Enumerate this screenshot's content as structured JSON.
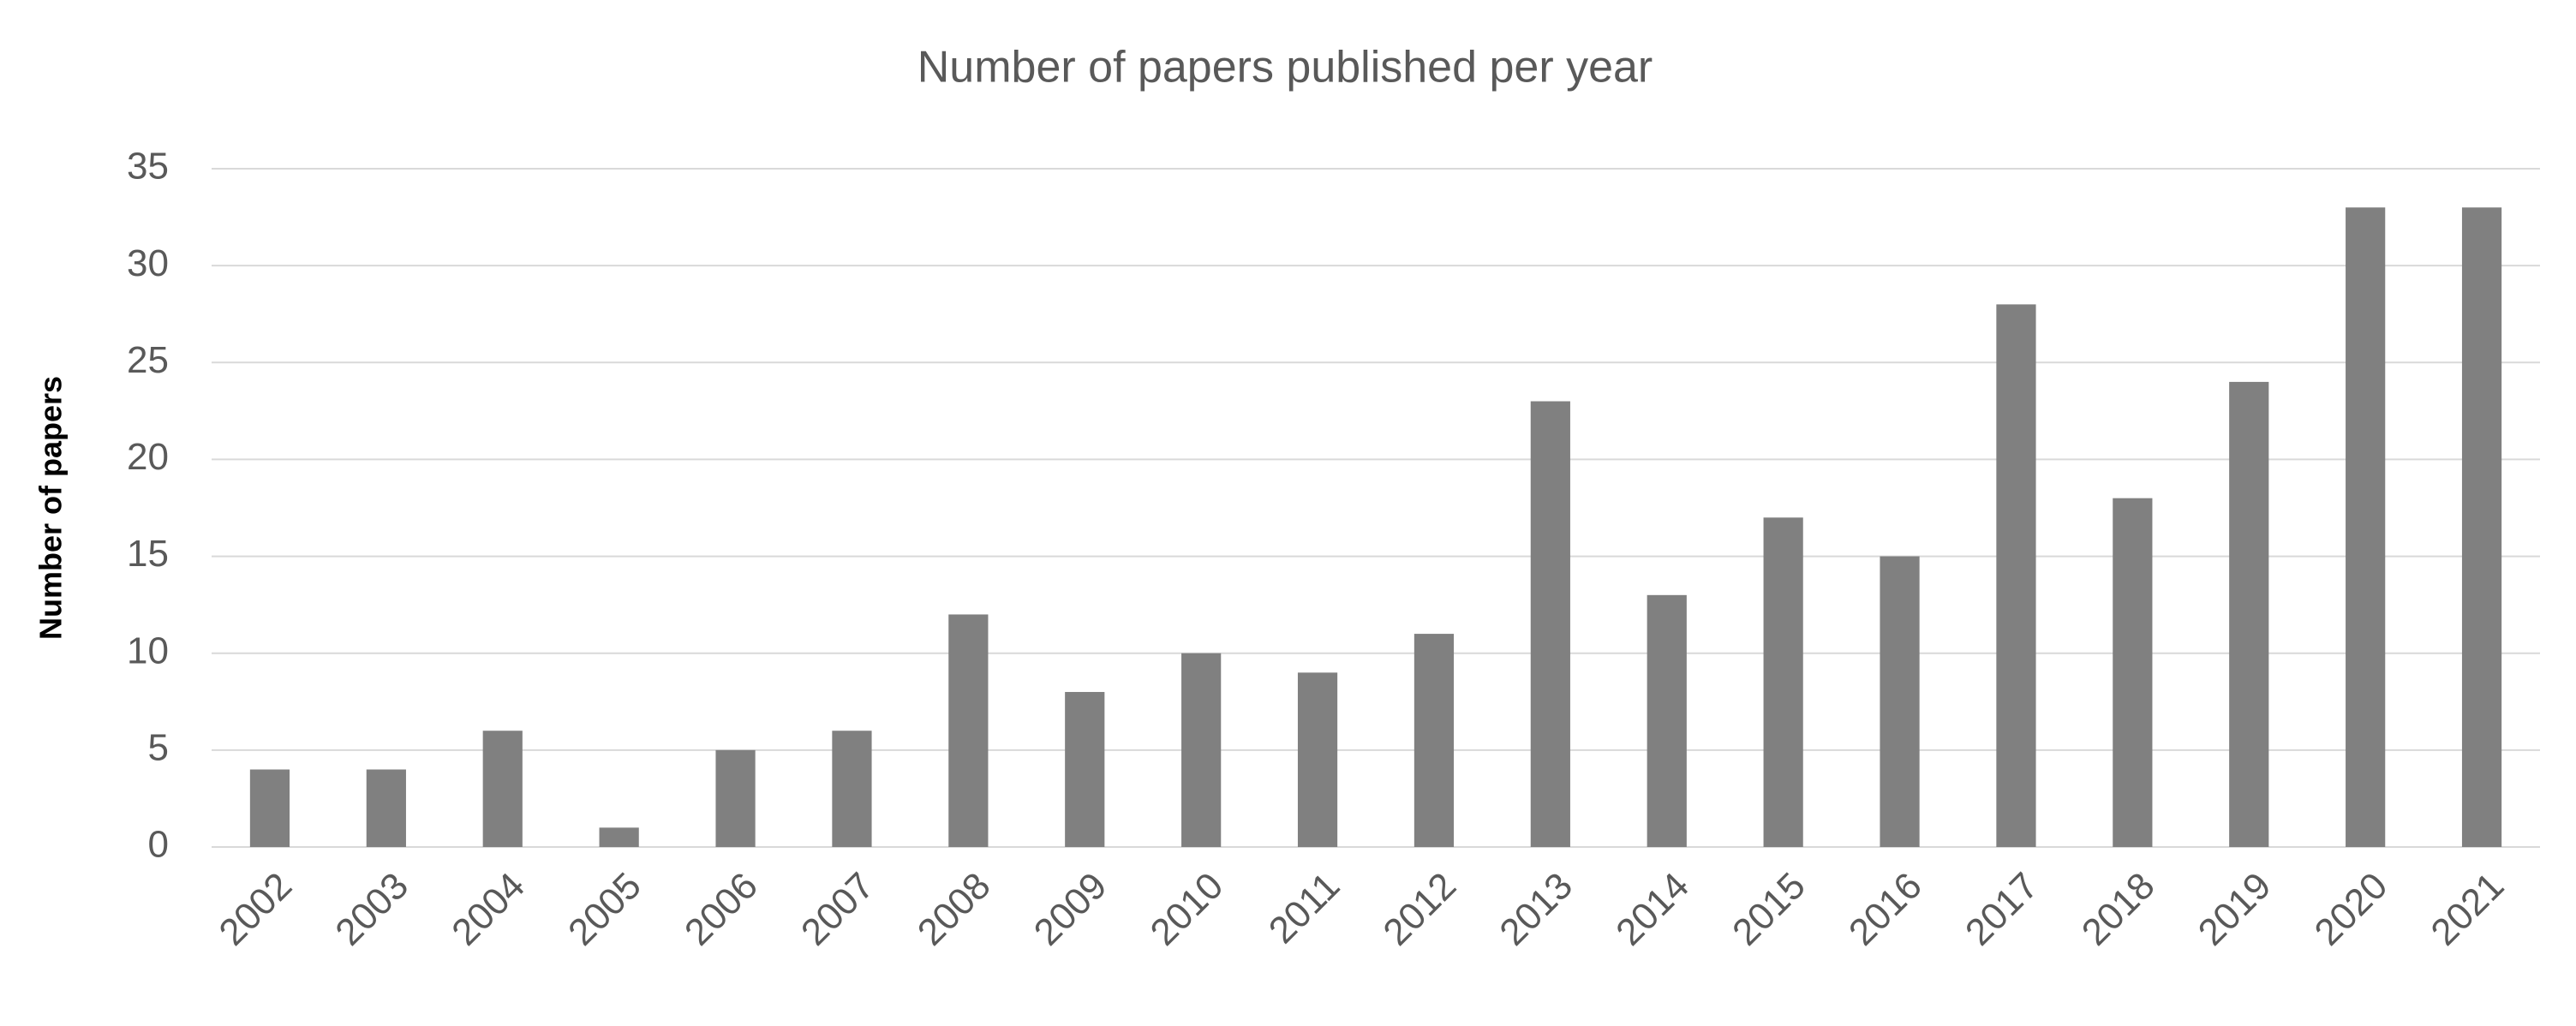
{
  "chart_data": {
    "type": "bar",
    "title": "Number of papers published per year",
    "y_label": "Number of papers",
    "categories": [
      "2002",
      "2003",
      "2004",
      "2005",
      "2006",
      "2007",
      "2008",
      "2009",
      "2010",
      "2011",
      "2012",
      "2013",
      "2014",
      "2015",
      "2016",
      "2017",
      "2018",
      "2019",
      "2020",
      "2021"
    ],
    "values": [
      4,
      4,
      6,
      1,
      5,
      6,
      12,
      8,
      10,
      9,
      11,
      23,
      13,
      17,
      15,
      28,
      18,
      24,
      33,
      33
    ],
    "color": "#808080",
    "ylim": [
      0,
      35
    ],
    "yticks": [
      0,
      5,
      10,
      15,
      20,
      25,
      30,
      35
    ],
    "grid": true
  }
}
